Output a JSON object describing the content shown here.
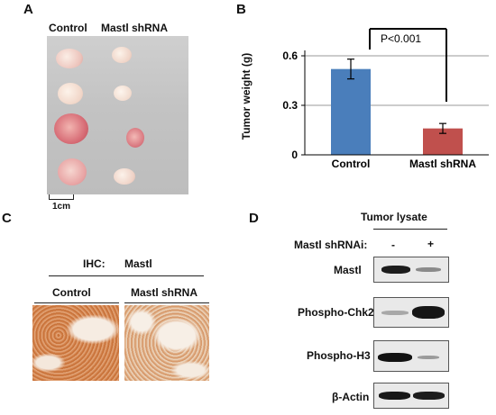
{
  "panels": {
    "a": {
      "letter": "A",
      "col_labels": [
        "Control",
        "Mastl shRNA"
      ],
      "scale_bar": "1cm"
    },
    "b": {
      "letter": "B",
      "significance": "P<0.001"
    },
    "c": {
      "letter": "C",
      "ihc_label": "IHC:",
      "ihc_target": "Mastl",
      "col_labels": [
        "Control",
        "Mastl shRNA"
      ]
    },
    "d": {
      "letter": "D",
      "title": "Tumor lysate",
      "condition_label": "Mastl shRNAi:",
      "lane_signs": [
        "-",
        "+"
      ],
      "rows": [
        "Mastl",
        "Phospho-Chk2",
        "Phospho-H3",
        "β-Actin"
      ]
    }
  },
  "chart_data": {
    "type": "bar",
    "categories": [
      "Control",
      "Mastl shRNA"
    ],
    "values": [
      0.52,
      0.16
    ],
    "errors": [
      0.06,
      0.03
    ],
    "ylabel": "Tumor weight (g)",
    "ylim": [
      0,
      0.6
    ],
    "yticks": [
      "0",
      "0.3",
      "0.6"
    ],
    "colors": [
      "#4a7ebb",
      "#c0504d"
    ],
    "grid": true
  }
}
